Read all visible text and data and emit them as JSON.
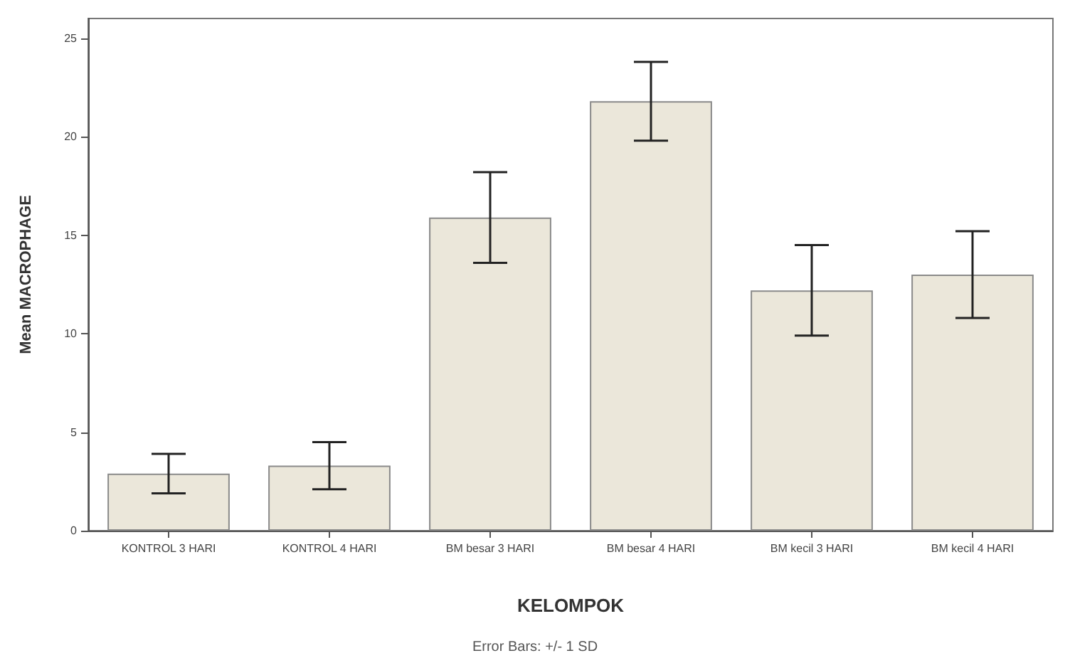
{
  "chart_data": {
    "type": "bar",
    "xlabel": "KELOMPOK",
    "ylabel": "Mean MACROPHAGE",
    "categories": [
      "KONTROL 3 HARI",
      "KONTROL 4 HARI",
      "BM besar 3 HARI",
      "BM besar 4 HARI",
      "BM kecil 3 HARI",
      "BM kecil 4 HARI"
    ],
    "values": [
      2.9,
      3.3,
      15.9,
      21.8,
      12.2,
      13.0
    ],
    "errors": [
      1.0,
      1.2,
      2.3,
      2.0,
      2.3,
      2.2
    ],
    "color": "#ebe7da",
    "ylim": [
      0,
      26
    ],
    "yticks": [
      0,
      5,
      10,
      15,
      20,
      25
    ],
    "annotations": [
      "Error Bars: +/- 1 SD"
    ]
  }
}
